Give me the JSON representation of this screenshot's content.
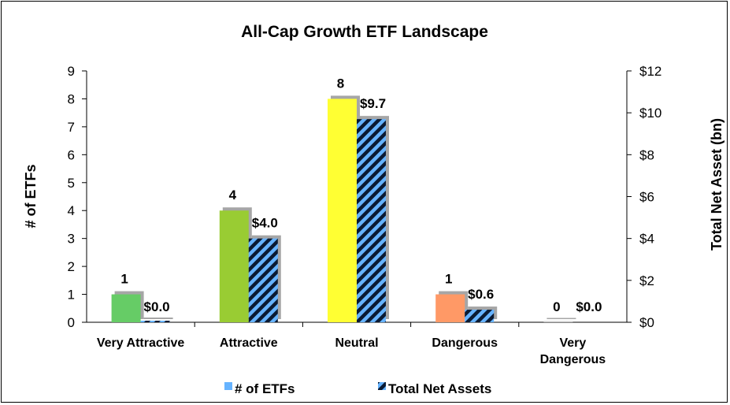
{
  "chart_data": {
    "type": "bar",
    "title": "All-Cap Growth ETF Landscape",
    "categories": [
      [
        "Very Attractive"
      ],
      [
        "Attractive"
      ],
      [
        "Neutral"
      ],
      [
        "Dangerous"
      ],
      [
        "Very",
        "Dangerous"
      ]
    ],
    "bar_colors": [
      "#66cc66",
      "#99cc33",
      "#ffff33",
      "#ff9966",
      "#cccccc"
    ],
    "hatch_colors": {
      "stripe": "#66b3ff",
      "base": "#0a1a33"
    },
    "series": [
      {
        "name": "# of ETFs",
        "axis": "left",
        "values": [
          1,
          4,
          8,
          1,
          0
        ],
        "labels": [
          "1",
          "4",
          "8",
          "1",
          "0"
        ]
      },
      {
        "name": "Total Net Assets",
        "axis": "right",
        "values": [
          0.0,
          4.0,
          9.7,
          0.6,
          0.0
        ],
        "labels": [
          "$0.0",
          "$4.0",
          "$9.7",
          "$0.6",
          "$0.0"
        ]
      }
    ],
    "ylabel": "# of ETFs",
    "ylim": [
      0,
      9
    ],
    "yticks": [
      "0",
      "1",
      "2",
      "3",
      "4",
      "5",
      "6",
      "7",
      "8",
      "9"
    ],
    "y2label": "Total Net Asset (bn)",
    "y2lim": [
      0,
      12
    ],
    "y2ticks": [
      "$0",
      "$2",
      "$4",
      "$6",
      "$8",
      "$10",
      "$12"
    ],
    "legend_position": "bottom",
    "grid": false
  }
}
